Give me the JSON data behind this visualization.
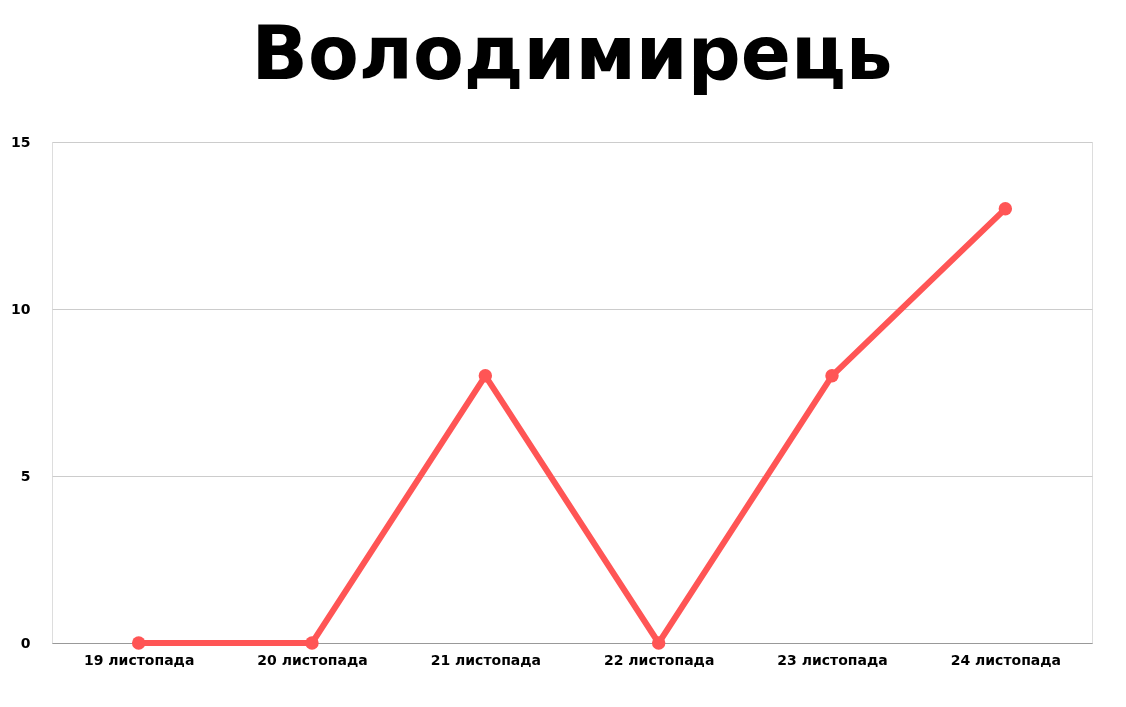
{
  "chart_data": {
    "type": "line",
    "title": "Володимирець",
    "categories": [
      "19 листопада",
      "20 листопада",
      "21 листопада",
      "22 листопада",
      "23 листопада",
      "24 листопада"
    ],
    "series": [
      {
        "color": "#ff5555",
        "values": [
          0,
          0,
          8,
          0,
          8,
          13
        ]
      }
    ],
    "ylim": [
      0,
      15
    ],
    "yticks": [
      0,
      5,
      10,
      15
    ],
    "grid": "y",
    "marker": "circle",
    "line_style": "solid",
    "legend": false
  }
}
